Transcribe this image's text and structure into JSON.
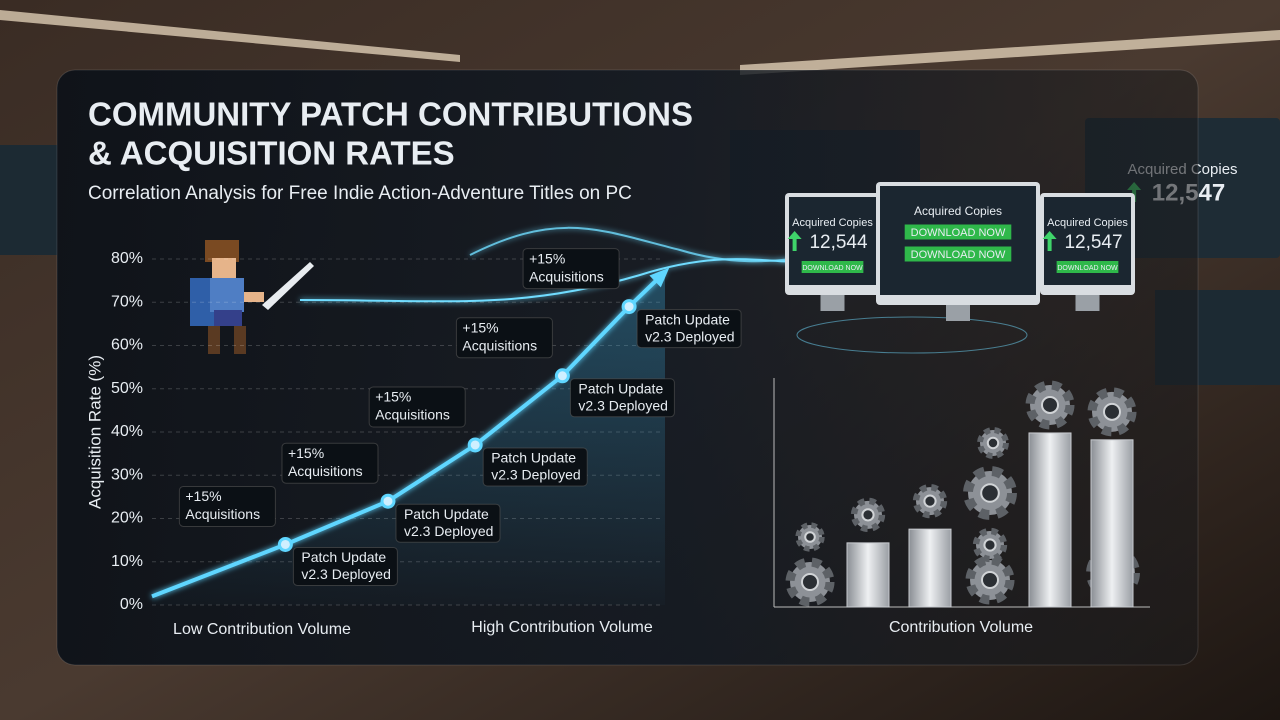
{
  "title": [
    "COMMUNITY PATCH CONTRIBUTIONS",
    "& ACQUISITION RATES"
  ],
  "subtitle": "Correlation Analysis for Free Indie Action-Adventure Titles on PC",
  "chart_data": [
    {
      "type": "line",
      "y_label": "Acquisition Rate (%)",
      "x_labels": [
        "Low Contribution Volume",
        "High Contribution Volume"
      ],
      "x": [
        0,
        26,
        46,
        63,
        80,
        93,
        100
      ],
      "xlim": [
        0,
        100
      ],
      "values": [
        2,
        14,
        24,
        37,
        53,
        69,
        77
      ],
      "color": "#5fd6ff",
      "ylim": [
        0,
        80
      ],
      "yticks": [
        {
          "value": 0,
          "label": "0%"
        },
        {
          "value": 10,
          "label": "10%"
        },
        {
          "value": 20,
          "label": "20%"
        },
        {
          "value": 30,
          "label": "30%"
        },
        {
          "value": 40,
          "label": "40%"
        },
        {
          "value": 50,
          "label": "50%"
        },
        {
          "value": 60,
          "label": "60%"
        },
        {
          "value": 70,
          "label": "70%"
        },
        {
          "value": 80,
          "label": "80%"
        }
      ],
      "grid": true,
      "annotations": [
        {
          "lines": [
            "+15%",
            "Acquisitions"
          ]
        },
        {
          "lines": [
            "+15%",
            "Acquisitions"
          ]
        },
        {
          "lines": [
            "+15%",
            "Acquisitions"
          ]
        },
        {
          "lines": [
            "+15%",
            "Acquisitions"
          ]
        },
        {
          "lines": [
            "+15%",
            "Acquisitions"
          ]
        }
      ],
      "callouts": [
        {
          "lines": [
            "Patch Update",
            "v2.3 Deployed"
          ]
        },
        {
          "lines": [
            "Patch Update",
            "v2.3 Deployed"
          ]
        },
        {
          "lines": [
            "Patch Update",
            "v2.3 Deployed"
          ]
        },
        {
          "lines": [
            "Patch Update",
            "v2.3 Deployed"
          ]
        },
        {
          "lines": [
            "Patch Update",
            "v2.3 Deployed"
          ]
        }
      ]
    },
    {
      "type": "bar",
      "x_label": "Contribution Volume",
      "categories": [
        null,
        null,
        null,
        null
      ],
      "values": [
        28,
        34,
        76,
        73
      ],
      "ylim": [
        0,
        100
      ],
      "color": "#c9ccd1"
    }
  ],
  "monitors": [
    {
      "title": "Acquired Copies",
      "count": "12,544",
      "button": "DOWNLOAD NOW"
    },
    {
      "title": "Acquired Copies",
      "button": "DOWNLOAD NOW",
      "button2": "DOWNLOAD NOW"
    },
    {
      "title": "Acquired Copies",
      "count": "12,547",
      "button": "DOWNLOAD NOW"
    },
    {
      "title": "Acquired Copies",
      "count": "12,547"
    }
  ]
}
